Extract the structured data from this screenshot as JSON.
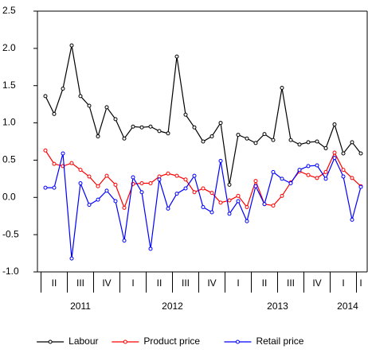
{
  "chart_data": {
    "type": "line",
    "categories": [
      null,
      "II",
      null,
      null,
      "III",
      null,
      null,
      "IV",
      null,
      null,
      "I",
      null,
      null,
      "II",
      null,
      null,
      "III",
      null,
      null,
      "IV",
      null,
      null,
      "I",
      null,
      null,
      "II",
      null,
      null,
      "III",
      null,
      null,
      "IV",
      null,
      null,
      "I",
      null,
      "I"
    ],
    "years": [
      "2011",
      "2012",
      "2013",
      "2014"
    ],
    "series": [
      {
        "name": "Labour",
        "color": "#000000",
        "values": [
          1.36,
          1.12,
          1.46,
          2.04,
          1.36,
          1.23,
          0.82,
          1.21,
          1.05,
          0.79,
          0.95,
          0.94,
          0.95,
          0.89,
          0.86,
          1.89,
          1.11,
          0.94,
          0.75,
          0.82,
          1.0,
          0.17,
          0.84,
          0.79,
          0.73,
          0.85,
          0.77,
          1.47,
          0.77,
          0.71,
          0.74,
          0.75,
          0.66,
          0.98,
          0.59,
          0.74,
          0.59
        ]
      },
      {
        "name": "Product price",
        "color": "#ff0000",
        "values": [
          0.63,
          0.45,
          0.42,
          0.46,
          0.37,
          0.28,
          0.15,
          0.29,
          0.17,
          -0.14,
          0.18,
          0.19,
          0.19,
          0.28,
          0.32,
          0.29,
          0.24,
          0.07,
          0.12,
          0.06,
          -0.07,
          -0.04,
          0.02,
          -0.13,
          0.22,
          -0.09,
          -0.11,
          0.02,
          0.2,
          0.35,
          0.3,
          0.26,
          0.34,
          0.6,
          0.37,
          0.26,
          0.15
        ]
      },
      {
        "name": "Retail price",
        "color": "#0000ff",
        "values": [
          0.13,
          0.13,
          0.59,
          -0.82,
          0.19,
          -0.1,
          -0.03,
          0.09,
          -0.05,
          -0.58,
          0.27,
          0.07,
          -0.69,
          0.24,
          -0.15,
          0.05,
          0.12,
          0.29,
          -0.13,
          -0.2,
          0.49,
          -0.22,
          -0.05,
          -0.32,
          0.15,
          -0.09,
          0.34,
          0.25,
          0.19,
          0.37,
          0.42,
          0.43,
          0.25,
          0.53,
          0.28,
          -0.3,
          0.14
        ]
      }
    ],
    "ylim": [
      -1.0,
      2.5
    ],
    "yticks": [
      {
        "value": -1.0,
        "label": "-1.0"
      },
      -0.5,
      {
        "value": 0.0,
        "label": "0.0"
      },
      0.5,
      {
        "value": 1.0,
        "label": "1.0"
      },
      1.5,
      {
        "value": 2.0,
        "label": "2.0"
      },
      2.5
    ],
    "legend": "bottom"
  }
}
